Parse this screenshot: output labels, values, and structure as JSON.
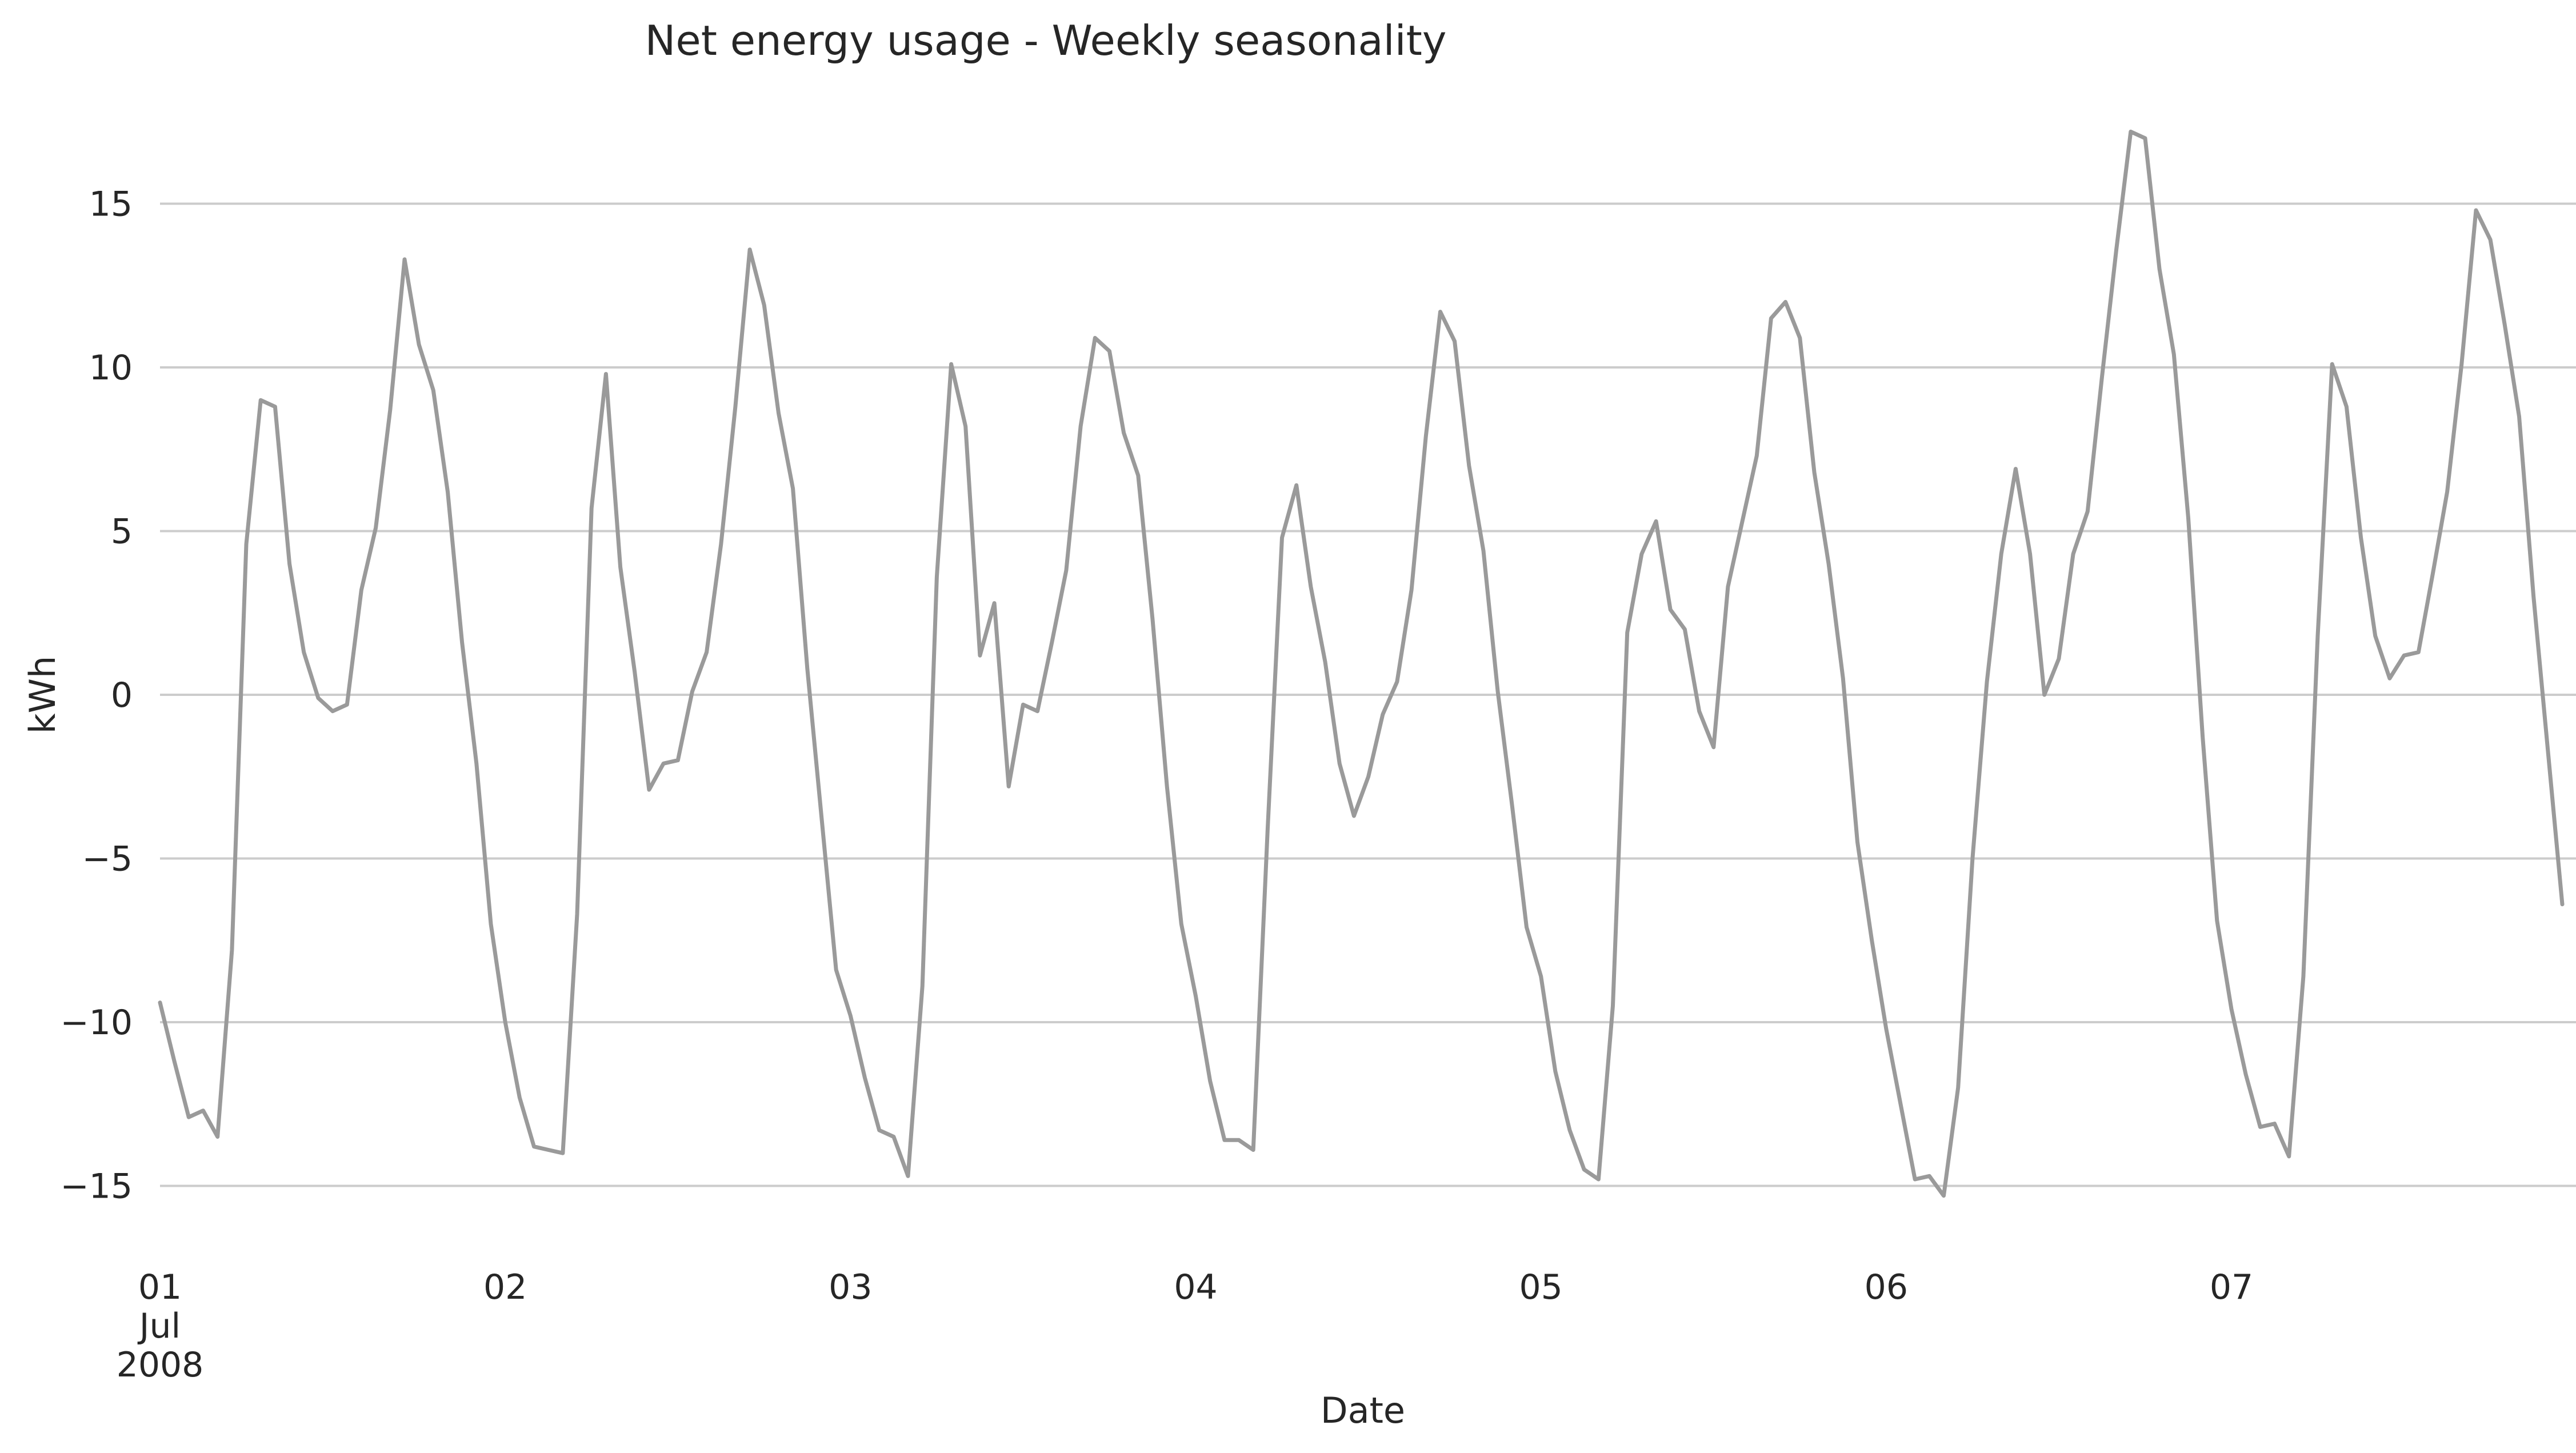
{
  "chart_data": {
    "type": "line",
    "title": "Net energy usage - Weekly seasonality",
    "xlabel": "Date",
    "ylabel": "kWh",
    "ylim": [
      -17,
      18.5
    ],
    "xlim": [
      0,
      167
    ],
    "yticks": [
      {
        "value": -15,
        "label": "−15"
      },
      {
        "value": -10,
        "label": "−10"
      },
      {
        "value": -5,
        "label": "−5"
      },
      {
        "value": 0,
        "label": "0"
      },
      {
        "value": 5,
        "label": "5"
      },
      {
        "value": 10,
        "label": "10"
      },
      {
        "value": 15,
        "label": "15"
      }
    ],
    "xticks": [
      {
        "value": 0,
        "lines": [
          "01",
          "Jul",
          "2008"
        ]
      },
      {
        "value": 24,
        "lines": [
          "02"
        ]
      },
      {
        "value": 48,
        "lines": [
          "03"
        ]
      },
      {
        "value": 72,
        "lines": [
          "04"
        ]
      },
      {
        "value": 96,
        "lines": [
          "05"
        ]
      },
      {
        "value": 120,
        "lines": [
          "06"
        ]
      },
      {
        "value": 144,
        "lines": [
          "07"
        ]
      }
    ],
    "grid": "horizontal",
    "series": [
      {
        "color": "#9a9a9a",
        "values": [
          -9.4,
          -11.2,
          -12.9,
          -12.7,
          -13.5,
          -7.8,
          4.6,
          9.0,
          8.8,
          4.0,
          1.3,
          -0.1,
          -0.5,
          -0.3,
          3.2,
          5.1,
          8.7,
          13.3,
          10.7,
          9.3,
          6.2,
          1.6,
          -2.1,
          -7.0,
          -10.0,
          -12.3,
          -13.8,
          -13.9,
          -14.0,
          -6.7,
          5.7,
          9.8,
          3.9,
          0.7,
          -2.9,
          -2.1,
          -2.0,
          0.1,
          1.3,
          4.6,
          8.8,
          13.6,
          11.9,
          8.6,
          6.3,
          0.8,
          -3.8,
          -8.4,
          -9.8,
          -11.7,
          -13.3,
          -13.5,
          -14.7,
          -8.9,
          3.6,
          10.1,
          8.2,
          1.2,
          2.8,
          -2.8,
          -0.3,
          -0.5,
          1.6,
          3.8,
          8.2,
          10.9,
          10.5,
          8.0,
          6.7,
          2.3,
          -2.8,
          -7.0,
          -9.2,
          -11.8,
          -13.6,
          -13.6,
          -13.9,
          -4.1,
          4.8,
          6.4,
          3.3,
          1.0,
          -2.1,
          -3.7,
          -2.5,
          -0.6,
          0.4,
          3.2,
          7.9,
          11.7,
          10.8,
          7.0,
          4.4,
          0.1,
          -3.4,
          -7.1,
          -8.6,
          -11.5,
          -13.3,
          -14.5,
          -14.8,
          -9.5,
          1.9,
          4.3,
          5.3,
          2.6,
          2.0,
          -0.5,
          -1.6,
          3.3,
          5.3,
          7.3,
          11.5,
          12.0,
          10.9,
          6.8,
          4.0,
          0.5,
          -4.5,
          -7.5,
          -10.2,
          -12.5,
          -14.8,
          -14.7,
          -15.3,
          -12.0,
          -5.0,
          0.4,
          4.3,
          6.9,
          4.3,
          0.0,
          1.1,
          4.3,
          5.6,
          9.7,
          13.6,
          17.2,
          17.0,
          13.0,
          10.4,
          5.4,
          -1.3,
          -6.9,
          -9.6,
          -11.6,
          -13.2,
          -13.1,
          -14.1,
          -8.6,
          1.8,
          10.1,
          8.8,
          4.8,
          1.8,
          0.5,
          1.2,
          1.3,
          3.7,
          6.2,
          10.1,
          14.8,
          13.9,
          11.3,
          8.5,
          3.0,
          -1.7,
          -6.4
        ]
      }
    ]
  }
}
